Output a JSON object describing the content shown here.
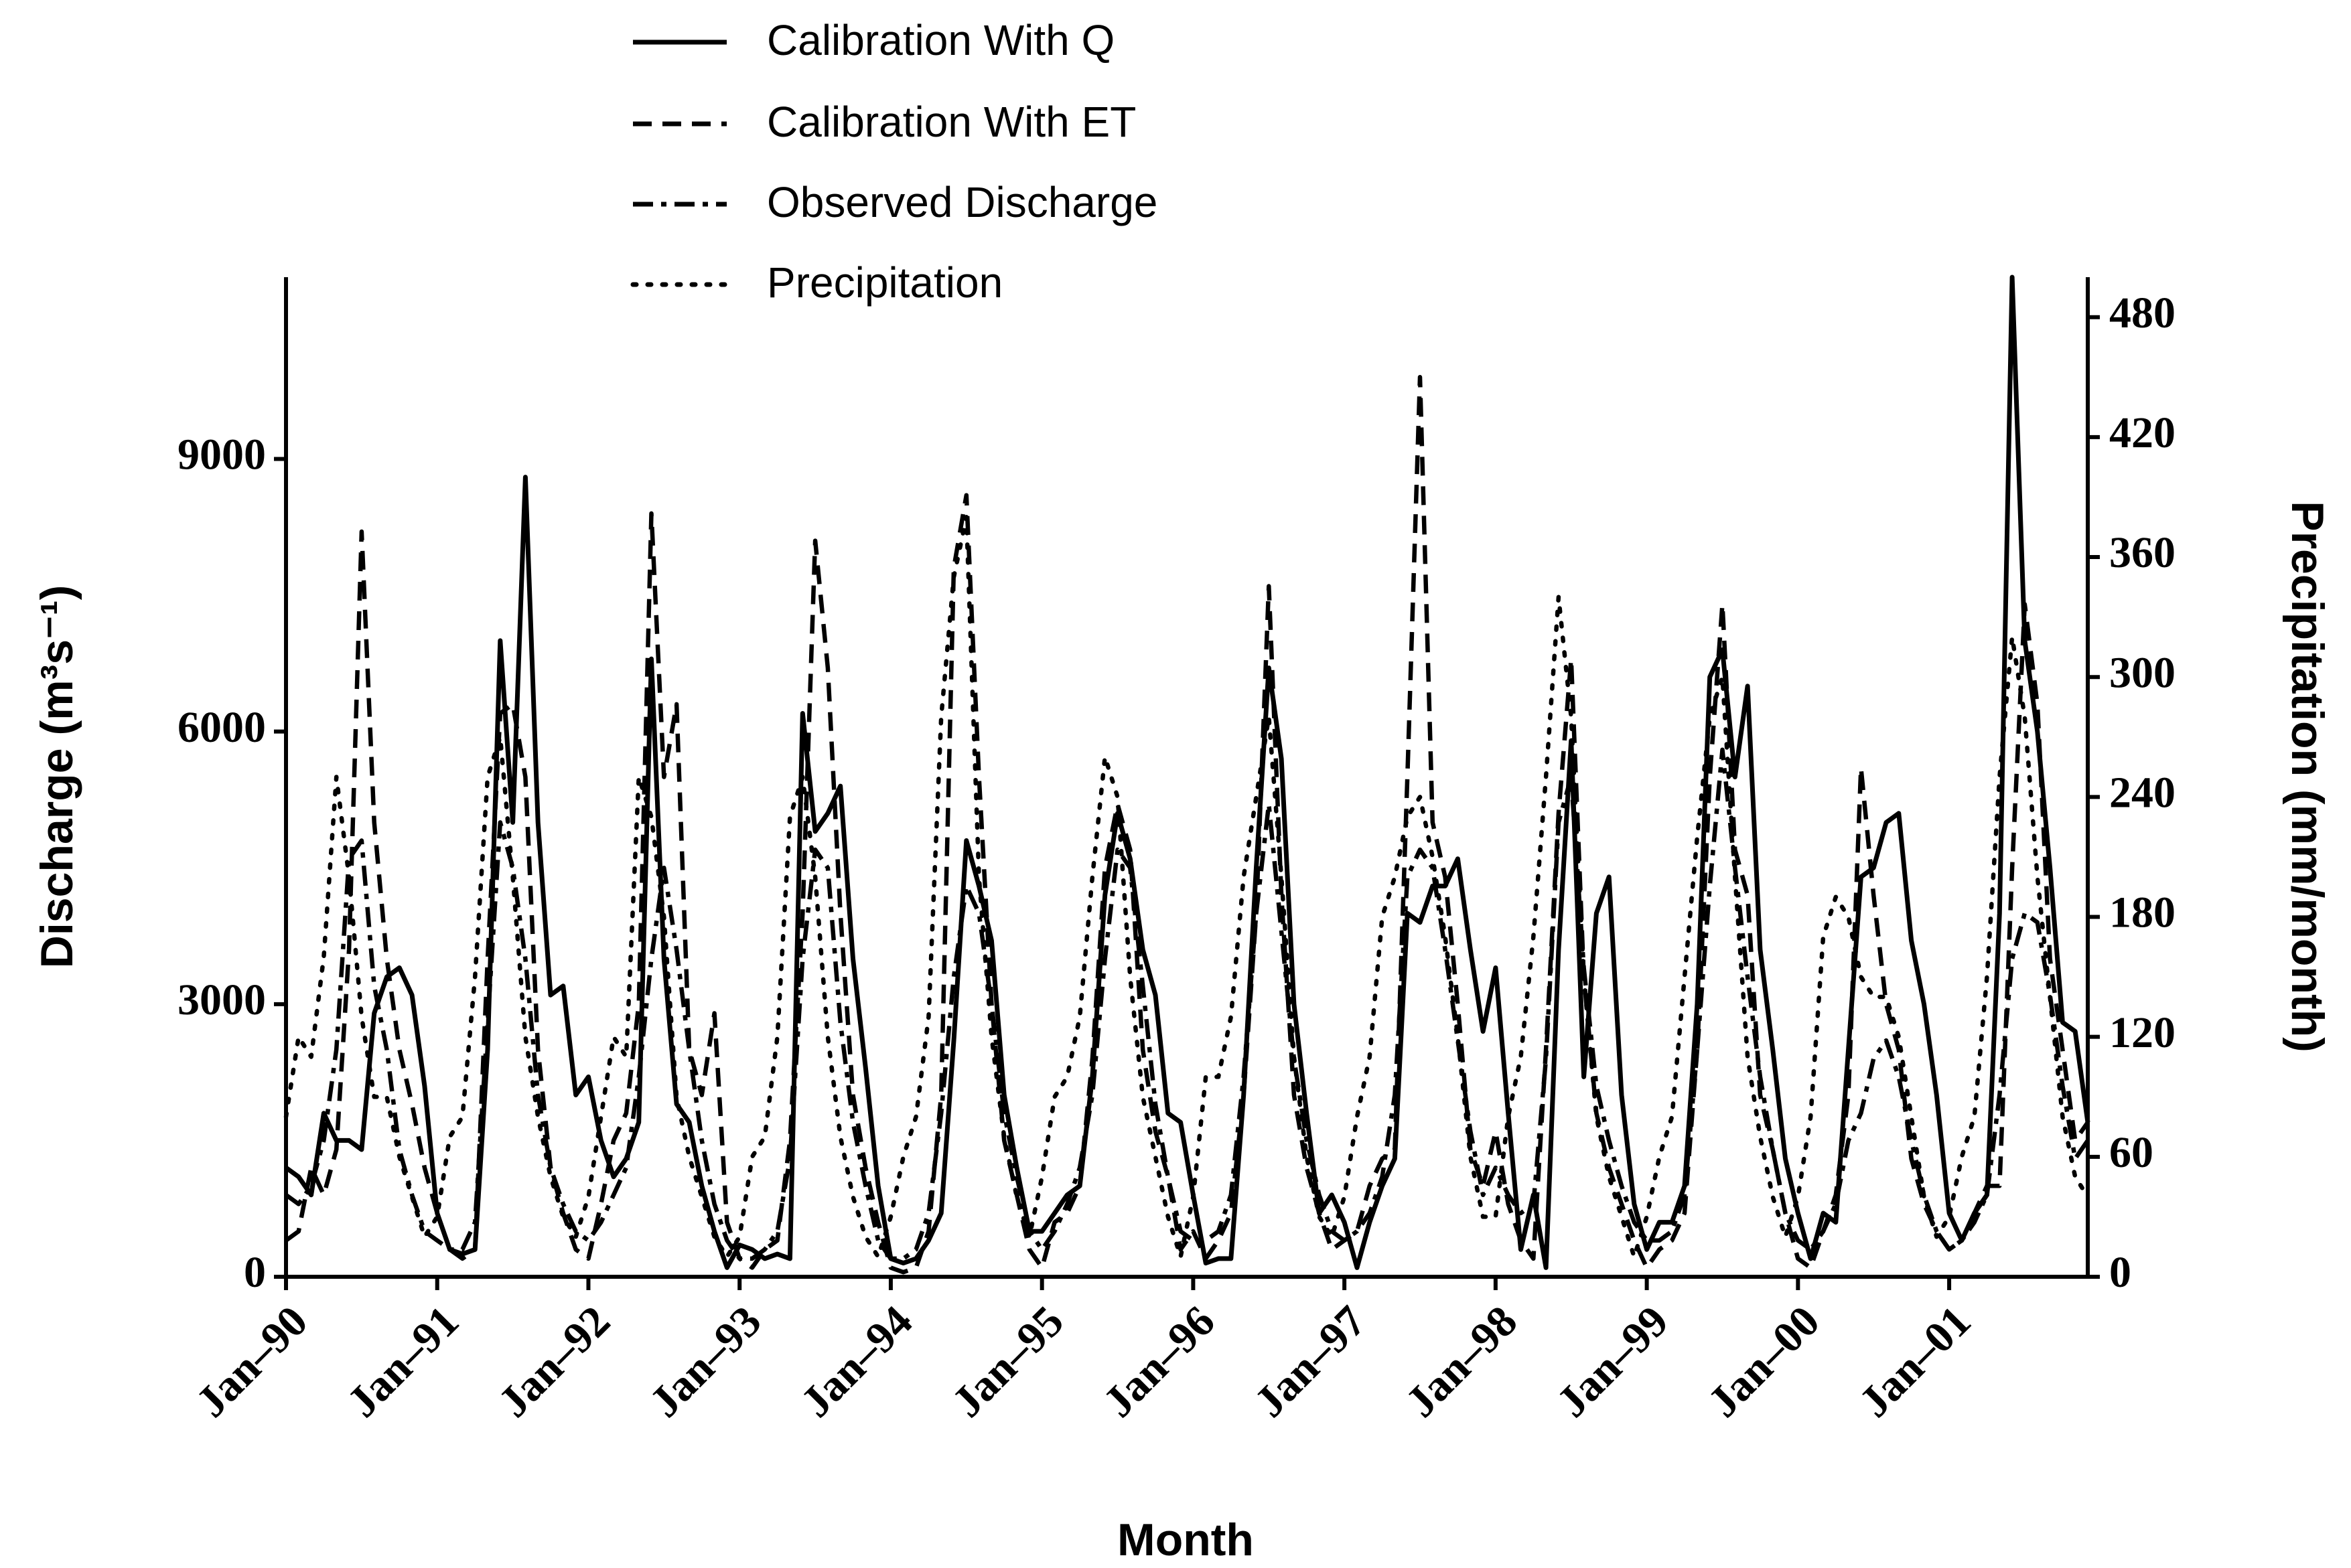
{
  "chart_data": {
    "type": "line",
    "x_label": "Month",
    "y_label": "Discharge (m³s⁻¹)",
    "y2_label": "Precipitation (mm/month)",
    "categories": [
      "Jan–90",
      null,
      null,
      null,
      null,
      null,
      null,
      null,
      null,
      null,
      null,
      null,
      "Jan–91",
      null,
      null,
      null,
      null,
      null,
      null,
      null,
      null,
      null,
      null,
      null,
      "Jan–92",
      null,
      null,
      null,
      null,
      null,
      null,
      null,
      null,
      null,
      null,
      null,
      "Jan–93",
      null,
      null,
      null,
      null,
      null,
      null,
      null,
      null,
      null,
      null,
      null,
      "Jan–94",
      null,
      null,
      null,
      null,
      null,
      null,
      null,
      null,
      null,
      null,
      null,
      "Jan–95",
      null,
      null,
      null,
      null,
      null,
      null,
      null,
      null,
      null,
      null,
      null,
      "Jan–96",
      null,
      null,
      null,
      null,
      null,
      null,
      null,
      null,
      null,
      null,
      null,
      "Jan–97",
      null,
      null,
      null,
      null,
      null,
      null,
      null,
      null,
      null,
      null,
      null,
      "Jan–98",
      null,
      null,
      null,
      null,
      null,
      null,
      null,
      null,
      null,
      null,
      null,
      "Jan–99",
      null,
      null,
      null,
      null,
      null,
      null,
      null,
      null,
      null,
      null,
      null,
      "Jan–00",
      null,
      null,
      null,
      null,
      null,
      null,
      null,
      null,
      null,
      null,
      null,
      "Jan–01",
      null,
      null,
      null,
      null,
      null,
      null,
      null,
      null,
      null,
      null,
      null
    ],
    "ylim": [
      0,
      11000
    ],
    "yticks": [
      0,
      3000,
      6000,
      9000
    ],
    "y2lim": [
      0,
      500
    ],
    "y2ticks": [
      0,
      60,
      120,
      180,
      240,
      300,
      360,
      420,
      480
    ],
    "series": [
      {
        "name": "Calibration With Q",
        "color": "#000000",
        "dash": "solid",
        "values": [
          1200,
          1100,
          900,
          1800,
          1500,
          1500,
          1400,
          2900,
          3300,
          3400,
          3100,
          2100,
          700,
          300,
          250,
          300,
          2500,
          7000,
          5000,
          8800,
          5000,
          3100,
          3200,
          2000,
          2200,
          1500,
          1100,
          1300,
          1700,
          6800,
          3500,
          1900,
          1700,
          1000,
          500,
          100,
          350,
          300,
          200,
          250,
          200,
          6200,
          4900,
          5100,
          5400,
          3500,
          2300,
          1000,
          200,
          150,
          200,
          400,
          700,
          2600,
          4800,
          4300,
          3700,
          2000,
          1200,
          500,
          500,
          700,
          900,
          1000,
          2200,
          4200,
          5100,
          4600,
          3600,
          3100,
          1800,
          1700,
          900,
          150,
          200,
          200,
          2000,
          4500,
          6700,
          5700,
          3000,
          1800,
          700,
          900,
          600,
          100,
          600,
          1000,
          1300,
          4000,
          3900,
          4300,
          4300,
          4600,
          3600,
          2700,
          3400,
          1800,
          300,
          900,
          100,
          3600,
          5900,
          2200,
          4000,
          4400,
          2000,
          800,
          300,
          600,
          600,
          1000,
          3000,
          6600,
          6900,
          5500,
          6500,
          3600,
          2500,
          1300,
          700,
          200,
          700,
          600,
          2500,
          4400,
          4500,
          5000,
          5100,
          3700,
          3000,
          2000,
          700,
          400,
          700,
          900,
          4000,
          11000,
          7000,
          6000,
          4500,
          2800,
          2700,
          1700
        ]
      },
      {
        "name": "Calibration With ET",
        "color": "#000000",
        "dash": "dashed",
        "values": [
          400,
          500,
          1200,
          900,
          1400,
          3600,
          8200,
          5000,
          3500,
          2500,
          1900,
          1200,
          700,
          300,
          200,
          300,
          3500,
          6200,
          6300,
          5500,
          2500,
          1200,
          700,
          300,
          200,
          800,
          1500,
          1800,
          3000,
          8400,
          5500,
          6300,
          2500,
          2000,
          2900,
          600,
          200,
          100,
          300,
          400,
          1500,
          4000,
          8100,
          6700,
          4000,
          2000,
          1200,
          600,
          100,
          50,
          100,
          500,
          2000,
          7800,
          8600,
          5500,
          3000,
          1500,
          900,
          300,
          100,
          600,
          700,
          1000,
          2400,
          4500,
          5200,
          4700,
          2500,
          1600,
          1100,
          300,
          500,
          200,
          400,
          700,
          2000,
          4000,
          7600,
          4200,
          2000,
          1200,
          700,
          300,
          400,
          500,
          1000,
          1300,
          1400,
          5500,
          9900,
          5000,
          4400,
          3000,
          1400,
          1000,
          1600,
          800,
          400,
          200,
          2500,
          5100,
          6800,
          3300,
          1800,
          1200,
          800,
          400,
          100,
          300,
          400,
          700,
          2500,
          5500,
          7400,
          4700,
          4200,
          2000,
          1400,
          700,
          200,
          100,
          500,
          900,
          2000,
          5600,
          4200,
          3000,
          2500,
          1300,
          800,
          500,
          300,
          400,
          700,
          1000,
          1000,
          4500,
          7400,
          6300,
          3500,
          2500,
          1500,
          1700
        ]
      },
      {
        "name": "Observed Discharge",
        "color": "#000000",
        "dash": "dashdot",
        "values": [
          900,
          800,
          1000,
          1500,
          2500,
          4600,
          4800,
          3200,
          2500,
          1400,
          900,
          500,
          400,
          300,
          300,
          600,
          2800,
          5000,
          4500,
          3500,
          2000,
          1200,
          800,
          500,
          400,
          600,
          900,
          1200,
          2200,
          3500,
          4500,
          3600,
          2500,
          1500,
          800,
          400,
          200,
          200,
          300,
          500,
          1300,
          3500,
          4700,
          4500,
          2800,
          1700,
          1000,
          400,
          200,
          200,
          300,
          700,
          1800,
          3300,
          4300,
          4000,
          3000,
          1800,
          1100,
          500,
          300,
          500,
          800,
          1200,
          2000,
          3500,
          4700,
          4500,
          3200,
          1900,
          1100,
          500,
          400,
          400,
          500,
          900,
          2200,
          4000,
          5200,
          3800,
          2400,
          1500,
          900,
          500,
          400,
          500,
          700,
          1100,
          2000,
          4400,
          4700,
          4500,
          3600,
          2600,
          1600,
          900,
          1200,
          900,
          700,
          800,
          2400,
          5000,
          5500,
          3400,
          2100,
          1500,
          1000,
          600,
          400,
          400,
          500,
          900,
          2500,
          4300,
          5800,
          4500,
          3300,
          2200,
          1400,
          700,
          400,
          300,
          500,
          800,
          1500,
          1800,
          2400,
          2600,
          2200,
          1500,
          900,
          500,
          300,
          400,
          600,
          900,
          2000,
          3500,
          4000,
          3900,
          3100,
          2100,
          1300,
          1500
        ]
      },
      {
        "name": "Precipitation",
        "color": "#000000",
        "dash": "dotted",
        "axis": "y2",
        "values": [
          80,
          120,
          110,
          160,
          250,
          200,
          130,
          90,
          90,
          60,
          40,
          20,
          30,
          70,
          80,
          150,
          250,
          270,
          200,
          120,
          80,
          50,
          30,
          20,
          40,
          80,
          120,
          110,
          250,
          230,
          180,
          90,
          60,
          40,
          20,
          10,
          20,
          60,
          70,
          120,
          230,
          250,
          200,
          120,
          70,
          40,
          20,
          10,
          30,
          60,
          80,
          130,
          280,
          350,
          380,
          200,
          120,
          70,
          40,
          20,
          50,
          90,
          100,
          130,
          200,
          260,
          240,
          150,
          90,
          60,
          30,
          10,
          40,
          100,
          100,
          130,
          200,
          240,
          280,
          200,
          110,
          60,
          30,
          20,
          40,
          80,
          110,
          180,
          200,
          230,
          240,
          210,
          170,
          120,
          60,
          30,
          30,
          80,
          110,
          170,
          250,
          340,
          280,
          150,
          80,
          50,
          30,
          10,
          30,
          60,
          80,
          150,
          220,
          280,
          300,
          200,
          110,
          70,
          40,
          20,
          40,
          80,
          170,
          190,
          180,
          150,
          140,
          140,
          120,
          80,
          40,
          20,
          30,
          60,
          80,
          150,
          250,
          320,
          280,
          200,
          140,
          80,
          50,
          40
        ]
      }
    ]
  }
}
